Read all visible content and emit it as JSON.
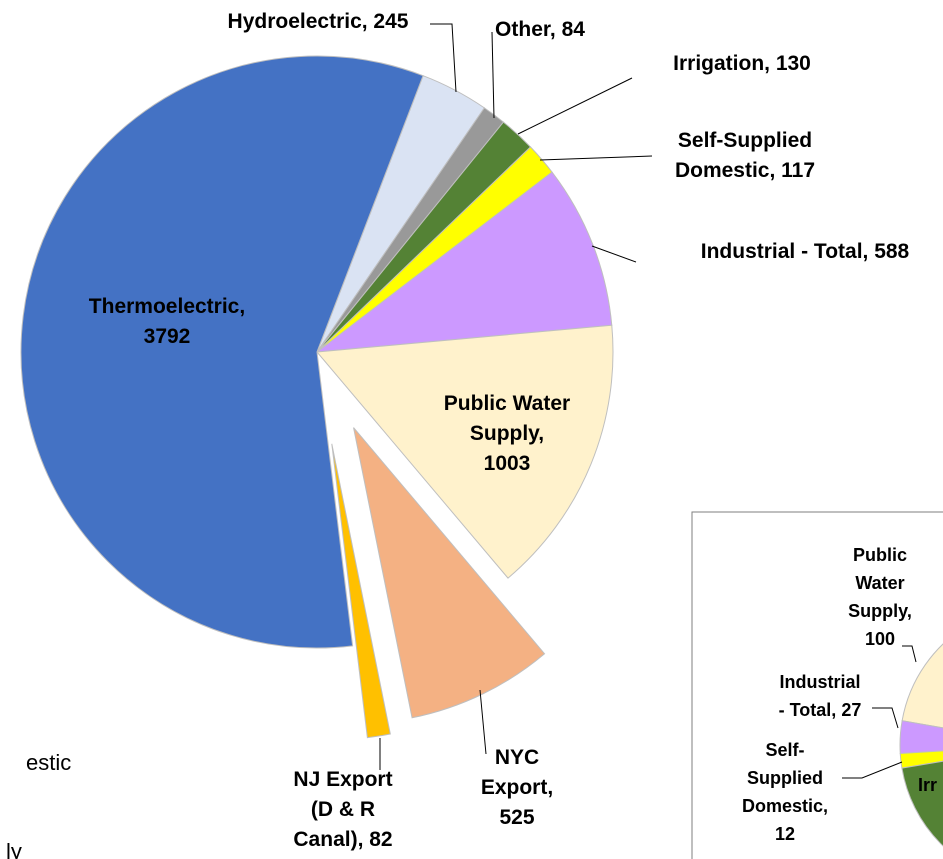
{
  "chart_data": [
    {
      "type": "pie",
      "categories": [
        "Hydroelectric, 245",
        "Other, 84",
        "Irrigation, 130",
        "Self-Supplied\nDomestic, 117",
        "Industrial  - Total, 588",
        "Public Water\nSupply,\n1003",
        "NYC\nExport,\n525",
        "NJ Export\n(D & R\nCanal), 82",
        "Thermoelectric,\n3792"
      ],
      "values": [
        245,
        84,
        130,
        117,
        588,
        1003,
        525,
        82,
        3792
      ],
      "colors": [
        "#dae3f3",
        "#999999",
        "#548235",
        "#ffff00",
        "#cc99ff",
        "#fff2cc",
        "#f4b183",
        "#ffc000",
        "#4472c4"
      ]
    },
    {
      "type": "pie",
      "categories": [
        "Public\nWater\nSupply,\n100",
        "Industrial\n- Total, 27",
        "Self-\nSupplied\nDomestic,\n12"
      ],
      "values": [
        100,
        27,
        12
      ],
      "colors": [
        "#fff2cc",
        "#cc99ff",
        "#ffff00"
      ],
      "cut_label": "Irr"
    }
  ],
  "legend_fragments": [
    "estic",
    "ly"
  ]
}
